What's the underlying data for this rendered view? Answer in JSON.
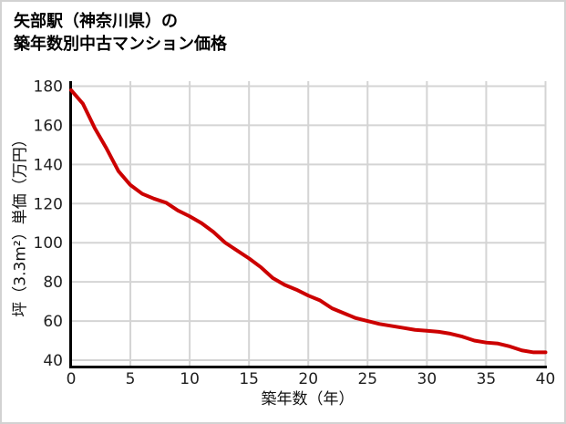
{
  "window": {
    "background_color": "#ffffff",
    "border_color": "#d2d2d2"
  },
  "title": {
    "line1": "矢部駅（神奈川県）の",
    "line2": "築年数別中古マンション価格"
  },
  "chart_data": {
    "type": "line",
    "title": "矢部駅（神奈川県）の築年数別中古マンション価格",
    "xlabel": "築年数（年）",
    "ylabel": "坪（3.3m²）単価（万円）",
    "x": [
      0,
      1,
      2,
      3,
      4,
      5,
      6,
      7,
      8,
      9,
      10,
      11,
      12,
      13,
      14,
      15,
      16,
      17,
      18,
      19,
      20,
      21,
      22,
      23,
      24,
      25,
      26,
      27,
      28,
      29,
      30,
      31,
      32,
      33,
      34,
      35,
      36,
      37,
      38,
      39,
      40
    ],
    "values": [
      178,
      171,
      158.5,
      148,
      136.5,
      129.5,
      125,
      122.5,
      120.5,
      116.5,
      113.5,
      110,
      105.5,
      100,
      96,
      92,
      87.5,
      82,
      78.5,
      76,
      73,
      70.5,
      66.5,
      64,
      61.5,
      60,
      58.5,
      57.5,
      56.5,
      55.5,
      55,
      54.5,
      53.5,
      52,
      50,
      49,
      48.5,
      47,
      45,
      44,
      44
    ],
    "xlim": [
      0,
      40
    ],
    "ylim": [
      40,
      180
    ],
    "xticks": [
      0,
      5,
      10,
      15,
      20,
      25,
      30,
      35,
      40
    ],
    "yticks": [
      40,
      60,
      80,
      100,
      120,
      140,
      160,
      180
    ],
    "grid": true,
    "legend": "none",
    "line_color": "#cc0000",
    "grid_color": "#d4d4d4",
    "axis_color": "#000000",
    "tick_label_color": "#1f1f1f"
  }
}
